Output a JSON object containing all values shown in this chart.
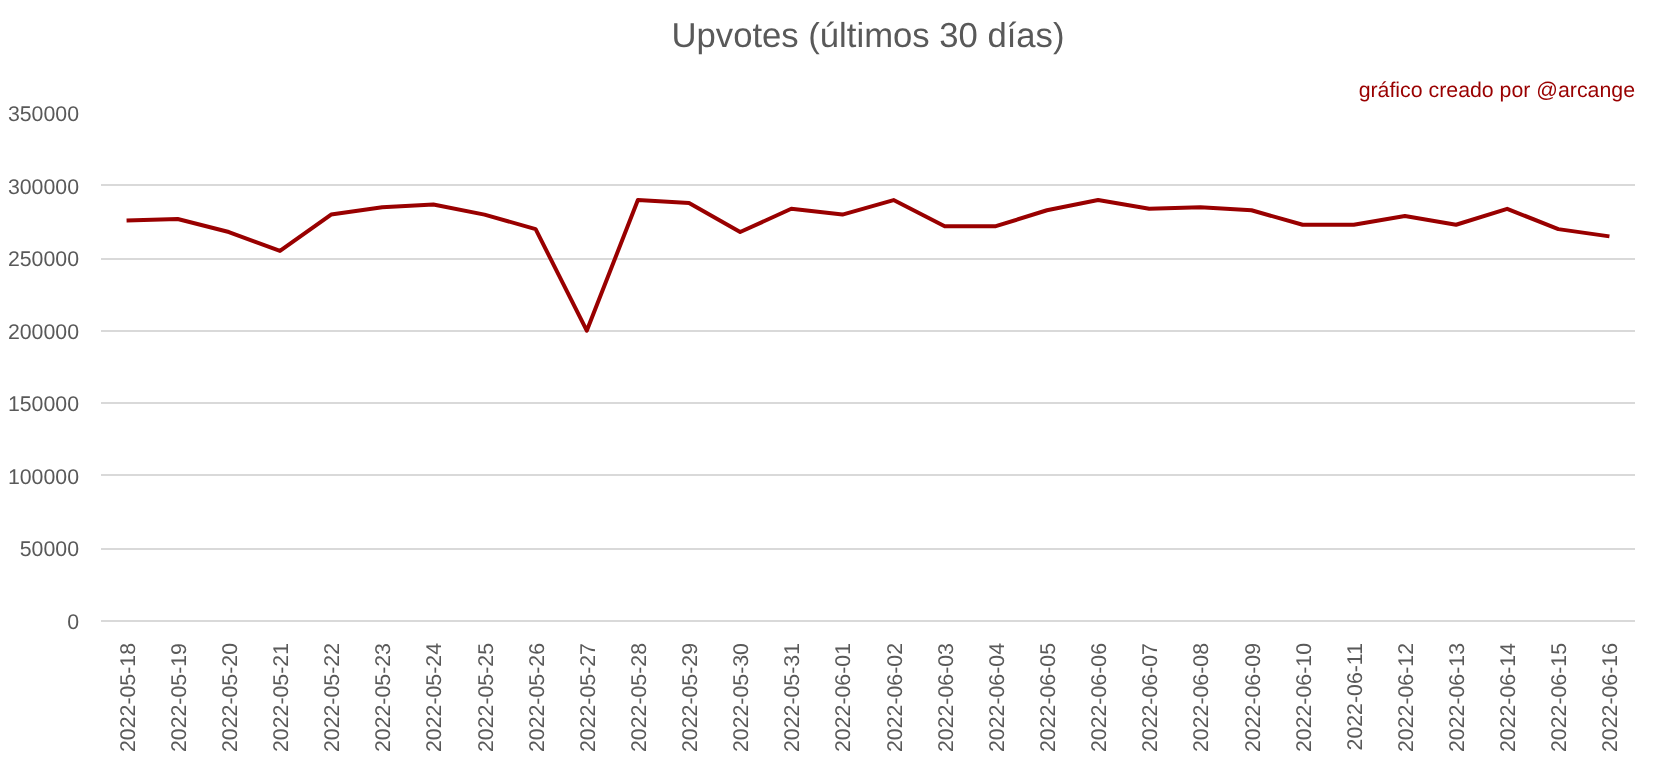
{
  "chart_data": {
    "type": "line",
    "title": "Upvotes (últimos 30 días)",
    "annotations": [
      "gráfico creado por @arcange"
    ],
    "categories": [
      "2022-05-18",
      "2022-05-19",
      "2022-05-20",
      "2022-05-21",
      "2022-05-22",
      "2022-05-23",
      "2022-05-24",
      "2022-05-25",
      "2022-05-26",
      "2022-05-27",
      "2022-05-28",
      "2022-05-29",
      "2022-05-30",
      "2022-05-31",
      "2022-06-01",
      "2022-06-02",
      "2022-06-03",
      "2022-06-04",
      "2022-06-05",
      "2022-06-06",
      "2022-06-07",
      "2022-06-08",
      "2022-06-09",
      "2022-06-10",
      "2022-06-11",
      "2022-06-12",
      "2022-06-13",
      "2022-06-14",
      "2022-06-15",
      "2022-06-16"
    ],
    "series": [
      {
        "color": "#990000",
        "values": [
          276000,
          277000,
          268000,
          255000,
          280000,
          285000,
          287000,
          280000,
          270000,
          200000,
          290000,
          288000,
          268000,
          284000,
          280000,
          290000,
          272000,
          272000,
          283000,
          290000,
          284000,
          285000,
          283000,
          273000,
          273000,
          279000,
          273000,
          284000,
          270000,
          265000
        ]
      }
    ],
    "ylim": [
      0,
      350000
    ],
    "yticks": [
      0,
      50000,
      100000,
      150000,
      200000,
      250000,
      300000,
      350000
    ],
    "grid": "y",
    "marker": "none",
    "line_style": "solid"
  }
}
